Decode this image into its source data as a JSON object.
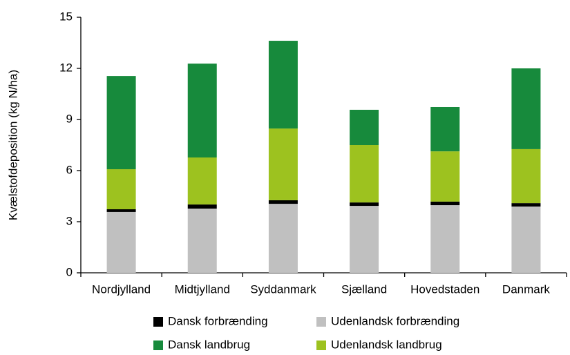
{
  "chart_data": {
    "type": "stacked_bar",
    "y_label": "Kvælstofdeposition (kg N/ha)",
    "categories": [
      "Nordjylland",
      "Midtjylland",
      "Syddanmark",
      "Sjælland",
      "Hovedstaden",
      "Danmark"
    ],
    "series": [
      {
        "name": "Dansk forbrænding",
        "color": "#000000",
        "values": [
          0.16,
          0.24,
          0.21,
          0.2,
          0.21,
          0.2
        ]
      },
      {
        "name": "Udenlandsk forbrænding",
        "color": "#c0c0c0",
        "values": [
          3.57,
          3.77,
          4.05,
          3.93,
          3.97,
          3.89
        ]
      },
      {
        "name": "Dansk landbrug",
        "color": "#178a3c",
        "values": [
          5.47,
          5.51,
          5.15,
          2.07,
          2.6,
          4.74
        ]
      },
      {
        "name": "Udenlandsk landbrug",
        "color": "#9dc21f",
        "values": [
          2.35,
          2.76,
          4.21,
          3.37,
          2.95,
          3.17
        ]
      }
    ],
    "ylim": [
      0,
      15
    ],
    "yticks": [
      0,
      3,
      6,
      9,
      12,
      15
    ]
  }
}
